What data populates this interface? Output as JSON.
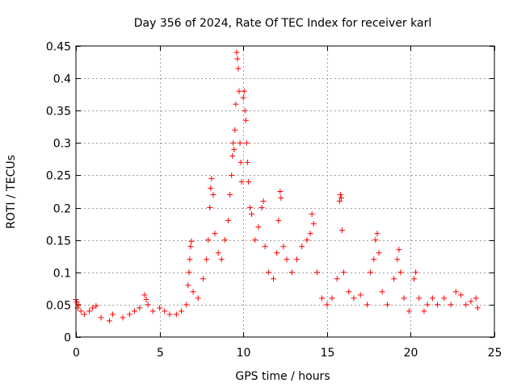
{
  "chart_data": {
    "type": "scatter",
    "title": "Day 356 of 2024, Rate Of TEC Index for receiver karl",
    "xlabel": "GPS time / hours",
    "ylabel": "ROTI / TECUs",
    "xlim": [
      0,
      25
    ],
    "ylim": [
      0,
      0.45
    ],
    "xticks": [
      0,
      5,
      10,
      15,
      20,
      25
    ],
    "xtick_labels": [
      "0",
      "5",
      "10",
      "15",
      "20",
      "25"
    ],
    "yticks": [
      0,
      0.05,
      0.1,
      0.15,
      0.2,
      0.25,
      0.3,
      0.35,
      0.4,
      0.45
    ],
    "ytick_labels": [
      "0",
      "0.05",
      "0.1",
      "0.15",
      "0.2",
      "0.25",
      "0.3",
      "0.35",
      "0.4",
      "0.45"
    ],
    "grid": true,
    "marker": "+",
    "color": "#ff0000",
    "series": [
      {
        "name": "ROTI",
        "points": [
          [
            0.0,
            0.058
          ],
          [
            0.05,
            0.054
          ],
          [
            0.1,
            0.045
          ],
          [
            0.15,
            0.05
          ],
          [
            0.3,
            0.04
          ],
          [
            0.5,
            0.035
          ],
          [
            0.8,
            0.04
          ],
          [
            1.0,
            0.045
          ],
          [
            1.2,
            0.048
          ],
          [
            1.5,
            0.03
          ],
          [
            2.0,
            0.025
          ],
          [
            2.2,
            0.035
          ],
          [
            2.8,
            0.03
          ],
          [
            3.2,
            0.035
          ],
          [
            3.5,
            0.04
          ],
          [
            3.8,
            0.045
          ],
          [
            4.1,
            0.065
          ],
          [
            4.2,
            0.058
          ],
          [
            4.3,
            0.05
          ],
          [
            4.6,
            0.04
          ],
          [
            5.0,
            0.045
          ],
          [
            5.3,
            0.04
          ],
          [
            5.6,
            0.035
          ],
          [
            6.0,
            0.035
          ],
          [
            6.3,
            0.04
          ],
          [
            6.6,
            0.05
          ],
          [
            6.7,
            0.08
          ],
          [
            6.75,
            0.1
          ],
          [
            6.8,
            0.12
          ],
          [
            6.85,
            0.14
          ],
          [
            6.9,
            0.148
          ],
          [
            7.0,
            0.07
          ],
          [
            7.3,
            0.06
          ],
          [
            7.6,
            0.09
          ],
          [
            7.8,
            0.12
          ],
          [
            7.9,
            0.15
          ],
          [
            8.0,
            0.2
          ],
          [
            8.05,
            0.23
          ],
          [
            8.1,
            0.245
          ],
          [
            8.2,
            0.22
          ],
          [
            8.3,
            0.16
          ],
          [
            8.5,
            0.13
          ],
          [
            8.7,
            0.12
          ],
          [
            8.9,
            0.15
          ],
          [
            9.1,
            0.18
          ],
          [
            9.2,
            0.22
          ],
          [
            9.3,
            0.25
          ],
          [
            9.35,
            0.28
          ],
          [
            9.4,
            0.3
          ],
          [
            9.45,
            0.29
          ],
          [
            9.5,
            0.32
          ],
          [
            9.55,
            0.36
          ],
          [
            9.6,
            0.44
          ],
          [
            9.65,
            0.43
          ],
          [
            9.7,
            0.415
          ],
          [
            9.75,
            0.38
          ],
          [
            9.8,
            0.3
          ],
          [
            9.85,
            0.27
          ],
          [
            9.9,
            0.24
          ],
          [
            10.0,
            0.37
          ],
          [
            10.05,
            0.38
          ],
          [
            10.1,
            0.35
          ],
          [
            10.15,
            0.335
          ],
          [
            10.2,
            0.3
          ],
          [
            10.25,
            0.27
          ],
          [
            10.3,
            0.24
          ],
          [
            10.4,
            0.2
          ],
          [
            10.5,
            0.19
          ],
          [
            10.7,
            0.15
          ],
          [
            10.9,
            0.17
          ],
          [
            11.1,
            0.2
          ],
          [
            11.2,
            0.21
          ],
          [
            11.3,
            0.14
          ],
          [
            11.5,
            0.1
          ],
          [
            11.8,
            0.09
          ],
          [
            12.0,
            0.13
          ],
          [
            12.1,
            0.18
          ],
          [
            12.2,
            0.225
          ],
          [
            12.25,
            0.215
          ],
          [
            12.4,
            0.14
          ],
          [
            12.6,
            0.12
          ],
          [
            12.9,
            0.1
          ],
          [
            13.2,
            0.12
          ],
          [
            13.5,
            0.14
          ],
          [
            13.8,
            0.15
          ],
          [
            14.0,
            0.16
          ],
          [
            14.1,
            0.19
          ],
          [
            14.2,
            0.175
          ],
          [
            14.4,
            0.1
          ],
          [
            14.7,
            0.06
          ],
          [
            15.0,
            0.05
          ],
          [
            15.3,
            0.06
          ],
          [
            15.6,
            0.09
          ],
          [
            15.75,
            0.21
          ],
          [
            15.8,
            0.22
          ],
          [
            15.85,
            0.215
          ],
          [
            15.9,
            0.165
          ],
          [
            16.0,
            0.1
          ],
          [
            16.3,
            0.07
          ],
          [
            16.6,
            0.06
          ],
          [
            17.0,
            0.065
          ],
          [
            17.4,
            0.05
          ],
          [
            17.6,
            0.1
          ],
          [
            17.8,
            0.12
          ],
          [
            17.9,
            0.15
          ],
          [
            18.0,
            0.16
          ],
          [
            18.1,
            0.13
          ],
          [
            18.3,
            0.07
          ],
          [
            18.6,
            0.05
          ],
          [
            19.0,
            0.09
          ],
          [
            19.2,
            0.12
          ],
          [
            19.3,
            0.135
          ],
          [
            19.4,
            0.1
          ],
          [
            19.6,
            0.06
          ],
          [
            19.9,
            0.04
          ],
          [
            20.2,
            0.09
          ],
          [
            20.3,
            0.1
          ],
          [
            20.5,
            0.06
          ],
          [
            20.8,
            0.04
          ],
          [
            21.0,
            0.05
          ],
          [
            21.3,
            0.06
          ],
          [
            21.6,
            0.05
          ],
          [
            22.0,
            0.06
          ],
          [
            22.4,
            0.05
          ],
          [
            22.7,
            0.07
          ],
          [
            23.0,
            0.065
          ],
          [
            23.3,
            0.05
          ],
          [
            23.6,
            0.055
          ],
          [
            23.9,
            0.06
          ],
          [
            24.0,
            0.045
          ]
        ]
      }
    ]
  }
}
